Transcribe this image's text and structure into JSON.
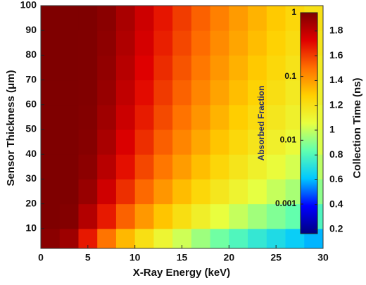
{
  "chart_data": {
    "type": "heatmap",
    "xlabel": "X-Ray Energy (keV)",
    "ylabel": "Sensor Thickness (μm)",
    "xbins": [
      0,
      2,
      4,
      6,
      8,
      10,
      12,
      14,
      16,
      18,
      20,
      22,
      24,
      26,
      28,
      30
    ],
    "ybins": [
      2,
      10,
      20,
      30,
      40,
      50,
      60,
      70,
      80,
      90,
      100
    ],
    "z": [
      [
        0.892,
        0.736,
        0.297,
        0.13,
        0.0645,
        0.0368,
        0.0228,
        0.0153,
        0.0107,
        0.0077,
        0.0058,
        0.0044,
        0.0035,
        0.0028,
        0.0023
      ],
      [
        0.996,
        0.964,
        0.586,
        0.295,
        0.154,
        0.0895,
        0.0561,
        0.0377,
        0.0264,
        0.019,
        0.0143,
        0.011,
        0.0087,
        0.007,
        0.0057
      ],
      [
        1,
        0.996,
        0.77,
        0.441,
        0.243,
        0.145,
        0.0917,
        0.0621,
        0.0436,
        0.0316,
        0.0237,
        0.0183,
        0.0144,
        0.0116,
        0.0095
      ],
      [
        1,
        1,
        0.872,
        0.557,
        0.322,
        0.197,
        0.126,
        0.0858,
        0.0606,
        0.0439,
        0.0331,
        0.0256,
        0.0201,
        0.0161,
        0.0133
      ],
      [
        1,
        1,
        0.929,
        0.649,
        0.393,
        0.245,
        0.159,
        0.109,
        0.0772,
        0.0561,
        0.0424,
        0.0328,
        0.0258,
        0.0207,
        0.017
      ],
      [
        1,
        1,
        0.961,
        0.722,
        0.457,
        0.291,
        0.191,
        0.132,
        0.0935,
        0.0681,
        0.0515,
        0.0399,
        0.0315,
        0.0253,
        0.0208
      ],
      [
        1,
        1,
        0.978,
        0.78,
        0.514,
        0.334,
        0.221,
        0.154,
        0.11,
        0.08,
        0.0606,
        0.047,
        0.0371,
        0.0298,
        0.0245
      ],
      [
        1,
        1,
        0.988,
        0.825,
        0.565,
        0.374,
        0.25,
        0.175,
        0.125,
        0.0917,
        0.0696,
        0.054,
        0.0427,
        0.0343,
        0.0282
      ],
      [
        1,
        1,
        0.993,
        0.861,
        0.611,
        0.412,
        0.279,
        0.196,
        0.141,
        0.103,
        0.0785,
        0.061,
        0.0482,
        0.0388,
        0.0319
      ],
      [
        1,
        1,
        0.996,
        0.89,
        0.652,
        0.448,
        0.306,
        0.216,
        0.156,
        0.115,
        0.0873,
        0.068,
        0.0537,
        0.0432,
        0.0356
      ]
    ],
    "xlim": [
      0,
      30
    ],
    "xticks": [
      0,
      5,
      10,
      15,
      20,
      25,
      30
    ],
    "ylim": [
      2,
      100
    ],
    "yticks": [
      10,
      20,
      30,
      40,
      50,
      60,
      70,
      80,
      90,
      100
    ],
    "colormap": [
      "#00007f",
      "#0000ff",
      "#00c8ff",
      "#60ffb0",
      "#e8ff40",
      "#ffd000",
      "#ff7000",
      "#e00000",
      "#7f0000"
    ],
    "colorbar_label": "Absorbed Fraction",
    "colorbar_scale": "log",
    "clim": [
      0.000344,
      1
    ],
    "cticks": [
      1,
      0.1,
      0.01,
      0.001
    ],
    "colorbar2_label": "Collection Time (ns)",
    "c2lim": [
      0.166,
      1.947
    ],
    "c2ticks": [
      0.2,
      0.4,
      0.6,
      0.8,
      1,
      1.2,
      1.4,
      1.6,
      1.8
    ]
  }
}
